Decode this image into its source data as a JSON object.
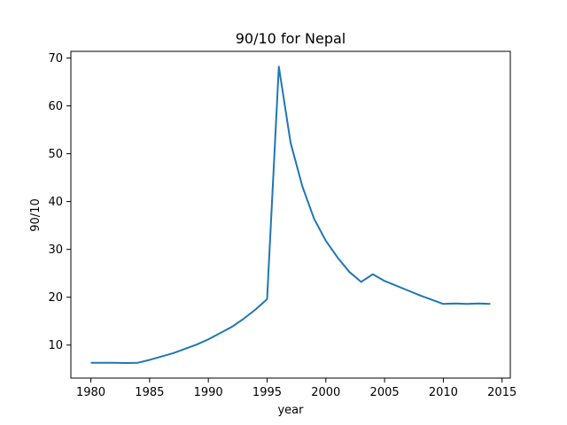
{
  "chart_data": {
    "type": "line",
    "title": "90/10 for Nepal",
    "xlabel": "year",
    "ylabel": "90/10",
    "xlim": [
      1978.3,
      2015.7
    ],
    "ylim": [
      3.1,
      71.4
    ],
    "xticks": [
      1980,
      1985,
      1990,
      1995,
      2000,
      2005,
      2010,
      2015
    ],
    "yticks": [
      10,
      20,
      30,
      40,
      50,
      60,
      70
    ],
    "grid": false,
    "series": [
      {
        "color": "#1f77b4",
        "x": [
          1980,
          1981,
          1982,
          1983,
          1984,
          1985,
          1986,
          1987,
          1988,
          1989,
          1990,
          1991,
          1992,
          1993,
          1994,
          1995,
          1996,
          1997,
          1998,
          1999,
          2000,
          2001,
          2002,
          2003,
          2004,
          2005,
          2006,
          2007,
          2008,
          2009,
          2010,
          2011,
          2012,
          2013,
          2014
        ],
        "y": [
          6.3,
          6.3,
          6.3,
          6.25,
          6.3,
          6.9,
          7.6,
          8.3,
          9.2,
          10.1,
          11.2,
          12.5,
          13.8,
          15.5,
          17.4,
          19.6,
          68.2,
          52.3,
          43.2,
          36.4,
          31.8,
          28.3,
          25.3,
          23.2,
          24.8,
          23.4,
          22.4,
          21.4,
          20.4,
          19.5,
          18.6,
          18.7,
          18.6,
          18.7,
          18.6
        ]
      }
    ]
  }
}
